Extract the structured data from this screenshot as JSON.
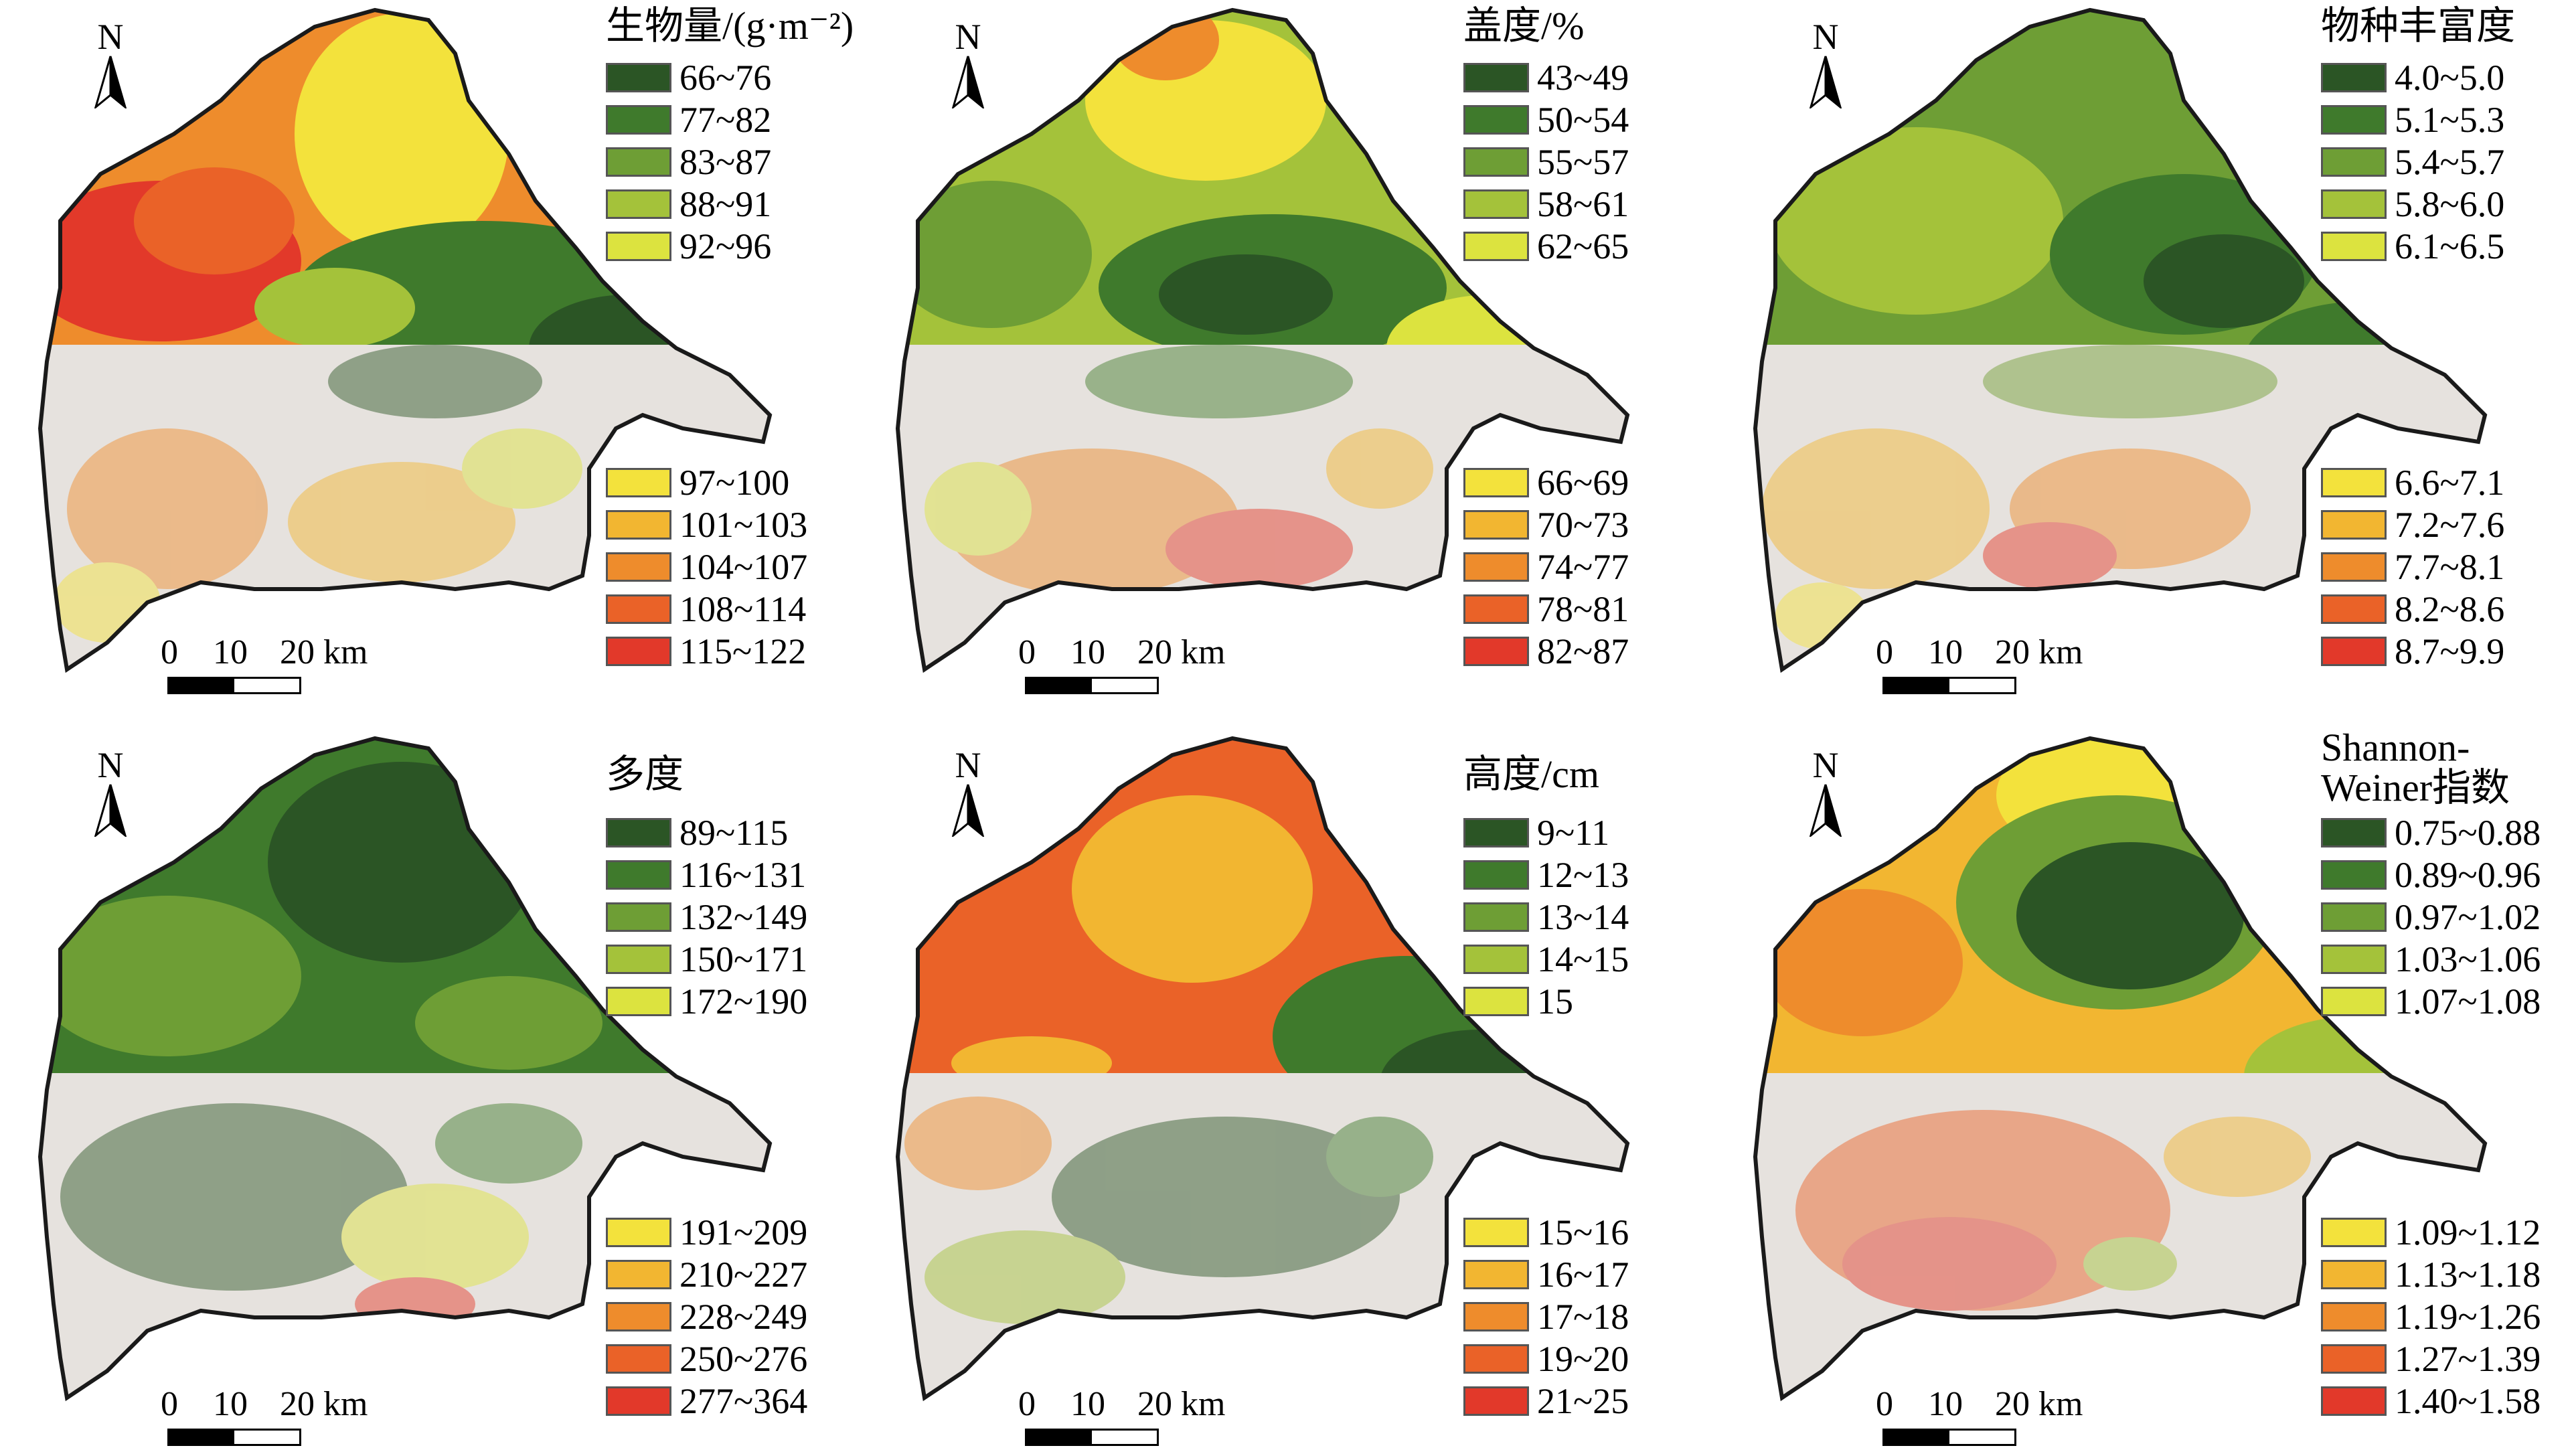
{
  "north_label": "N",
  "scale": {
    "ticks": [
      "0",
      "10",
      "20 km"
    ]
  },
  "colors": {
    "bare": "#e6e2de",
    "outline": "#1a1a1a",
    "ramp": [
      "#2b5525",
      "#3f7a2c",
      "#6e9e35",
      "#a4c23a",
      "#dce33f",
      "#f3e23c",
      "#f2b631",
      "#ee8c2c",
      "#ea6228",
      "#e2392a"
    ]
  },
  "panels": [
    {
      "title": "生物量/(g·m⁻²)",
      "legend_top": [
        "66~76",
        "77~82",
        "83~87",
        "88~91",
        "92~96"
      ],
      "legend_bottom": [
        "97~100",
        "101~103",
        "104~107",
        "108~114",
        "115~122"
      ]
    },
    {
      "title": "盖度/%",
      "legend_top": [
        "43~49",
        "50~54",
        "55~57",
        "58~61",
        "62~65"
      ],
      "legend_bottom": [
        "66~69",
        "70~73",
        "74~77",
        "78~81",
        "82~87"
      ]
    },
    {
      "title": "物种丰富度",
      "legend_top": [
        "4.0~5.0",
        "5.1~5.3",
        "5.4~5.7",
        "5.8~6.0",
        "6.1~6.5"
      ],
      "legend_bottom": [
        "6.6~7.1",
        "7.2~7.6",
        "7.7~8.1",
        "8.2~8.6",
        "8.7~9.9"
      ]
    },
    {
      "title": "多度",
      "legend_top": [
        "89~115",
        "116~131",
        "132~149",
        "150~171",
        "172~190"
      ],
      "legend_bottom": [
        "191~209",
        "210~227",
        "228~249",
        "250~276",
        "277~364"
      ]
    },
    {
      "title": "高度/cm",
      "legend_top": [
        "9~11",
        "12~13",
        "13~14",
        "14~15",
        "15"
      ],
      "legend_bottom": [
        "15~16",
        "16~17",
        "17~18",
        "19~20",
        "21~25"
      ]
    },
    {
      "title_lines": [
        "Shannon-",
        "Weiner指数"
      ],
      "legend_top": [
        "0.75~0.88",
        "0.89~0.96",
        "0.97~1.02",
        "1.03~1.06",
        "1.07~1.08"
      ],
      "legend_bottom": [
        "1.09~1.12",
        "1.13~1.18",
        "1.19~1.26",
        "1.27~1.39",
        "1.40~1.58"
      ]
    }
  ]
}
